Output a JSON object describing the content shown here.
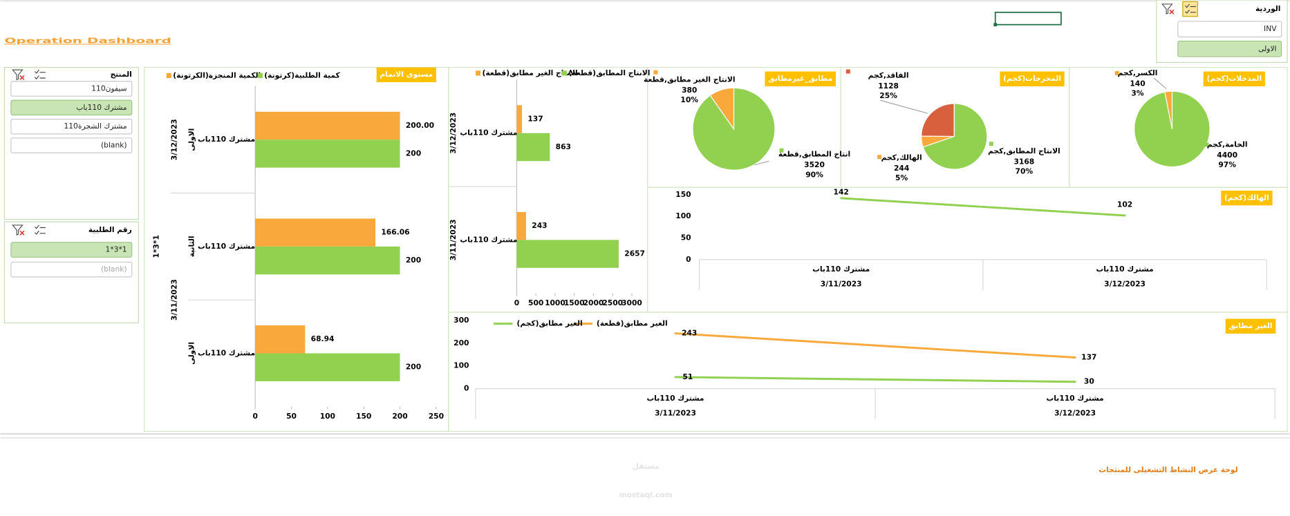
{
  "title": "Operation Dashboard",
  "footer": "لوحة عرض النشاط التشغيلى للمنتجات",
  "watermark": {
    "logo": "مستقل",
    "site": "mostaql.com"
  },
  "slicers": [
    {
      "title": "المنتج",
      "items": [
        "سيفون110",
        "مشترك 110باب",
        "مشترك الشجرة110",
        "(blank)"
      ],
      "selected": [
        1
      ]
    },
    {
      "title": "رقم الطلبية",
      "items": [
        "1*3*1",
        "(blank)"
      ],
      "selected": [
        0
      ],
      "unavailable": [
        1
      ]
    },
    {
      "title": "الوردية",
      "items": [
        "INV",
        "الاولى"
      ],
      "selected": [
        1
      ]
    }
  ],
  "chart_data": [
    {
      "type": "bar",
      "orientation": "horizontal",
      "title": "مستوى الاتمام",
      "categories": [
        "مشترك 110باب",
        "مشترك 110باب",
        "مشترك 110باب"
      ],
      "x_subgroups": [
        "الاولى",
        "الثانية",
        "الاولى"
      ],
      "x_groups": [
        "3/12/2023",
        "3/11/2023",
        "3/11/2023"
      ],
      "outer_group": "1*3*1",
      "series": [
        {
          "name": "الكمية المنجزة(الكرتونة)",
          "color": "#f9a93b",
          "values": [
            200,
            166.06,
            68.94
          ],
          "value_labels": [
            "200.00",
            "166.06",
            "68.94"
          ]
        },
        {
          "name": "كمية الطلبية(كرتونة)",
          "color": "#92d050",
          "values": [
            200,
            200,
            200
          ]
        }
      ],
      "xlim": [
        0,
        250
      ],
      "xticks": [
        0,
        50,
        100,
        150,
        200,
        250
      ]
    },
    {
      "type": "bar",
      "orientation": "horizontal",
      "categories": [
        "مشترك 110باب",
        "مشترك 110باب"
      ],
      "x_groups": [
        "3/12/2023",
        "3/11/2023"
      ],
      "series": [
        {
          "name": "الانتاج الغير مطابق(قطعة)",
          "color": "#f9a93b",
          "values": [
            137,
            243
          ]
        },
        {
          "name": "الانتاج المطابق(قطعة)",
          "color": "#92d050",
          "values": [
            863,
            2657
          ]
        }
      ],
      "xlim": [
        0,
        3000
      ],
      "xticks": [
        0,
        500,
        1000,
        1500,
        2000,
        2500,
        3000
      ]
    },
    {
      "type": "pie",
      "title": "مطابق_غيرمطابق",
      "categories": [
        "انتاج المطابق,قطعة",
        "الانتاج الغير مطابق,قطعة"
      ],
      "values": [
        3520,
        380
      ],
      "percent_labels": [
        "90%",
        "10%"
      ],
      "colors": [
        "#92d050",
        "#f9a93b"
      ]
    },
    {
      "type": "pie",
      "title": "المخرجات(كجم)",
      "categories": [
        "الانتاج المطابق,كجم",
        "الهالك,كجم",
        "الفاقد,كجم"
      ],
      "values": [
        3168,
        244,
        1128
      ],
      "percent_labels": [
        "70%",
        "5%",
        "25%"
      ],
      "colors": [
        "#92d050",
        "#f9a93b",
        "#d8603c"
      ]
    },
    {
      "type": "pie",
      "title": "المدخلات(كجم)",
      "categories": [
        "الخامة,كجم",
        "الكسر,كجم"
      ],
      "values": [
        4400,
        140
      ],
      "percent_labels": [
        "97%",
        "3%"
      ],
      "colors": [
        "#92d050",
        "#f9a93b"
      ]
    },
    {
      "type": "line",
      "title": "الهالك(كجم)",
      "categories": [
        "مشترك 110باب",
        "مشترك 110باب"
      ],
      "x_groups": [
        "3/11/2023",
        "3/12/2023"
      ],
      "values": [
        142,
        102
      ],
      "color": "#92d050",
      "ylim": [
        0,
        150
      ],
      "yticks": [
        0,
        50,
        100,
        150
      ]
    },
    {
      "type": "line",
      "title": "الغير مطابق",
      "categories": [
        "مشترك 110باب",
        "مشترك 110باب"
      ],
      "x_groups": [
        "3/11/2023",
        "3/12/2023"
      ],
      "series": [
        {
          "name": "الغير مطابق(قطعة)",
          "color": "#f9a93b",
          "values": [
            243,
            137
          ]
        },
        {
          "name": "الغير مطابق(كجم)",
          "color": "#92d050",
          "values": [
            51,
            30
          ]
        }
      ],
      "ylim": [
        0,
        300
      ],
      "yticks": [
        0,
        100,
        200,
        300
      ]
    }
  ]
}
